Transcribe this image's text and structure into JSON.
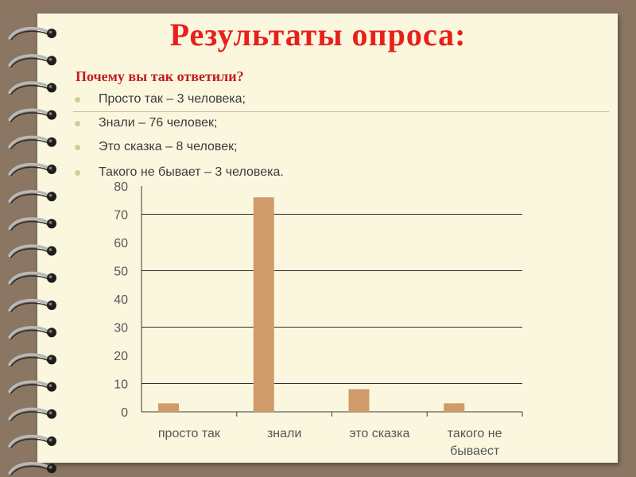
{
  "slide": {
    "title": "Результаты опроса:",
    "question": "Почему вы так ответили?",
    "bullets": [
      "Просто так – 3 человека;",
      "Знали  – 76 человек;",
      "Это сказка – 8 человек;",
      "Такого не бывает – 3 человека."
    ]
  },
  "colors": {
    "background": "#8b7663",
    "paper": "#fbf7df",
    "title": "#e8201b",
    "question": "#c41c1c",
    "bar": "#cf9b6a"
  },
  "chart_data": {
    "type": "bar",
    "categories": [
      "просто так",
      "знали",
      "это сказка",
      "такого не бываест"
    ],
    "category_lines": [
      [
        "просто так"
      ],
      [
        "знали"
      ],
      [
        "это сказка"
      ],
      [
        "такого не",
        "бываест"
      ]
    ],
    "values": [
      3,
      76,
      8,
      3
    ],
    "ylim": [
      0,
      80
    ],
    "yticks": [
      0,
      10,
      20,
      30,
      40,
      50,
      60,
      70,
      80
    ],
    "grid": true,
    "title": "",
    "xlabel": "",
    "ylabel": ""
  }
}
